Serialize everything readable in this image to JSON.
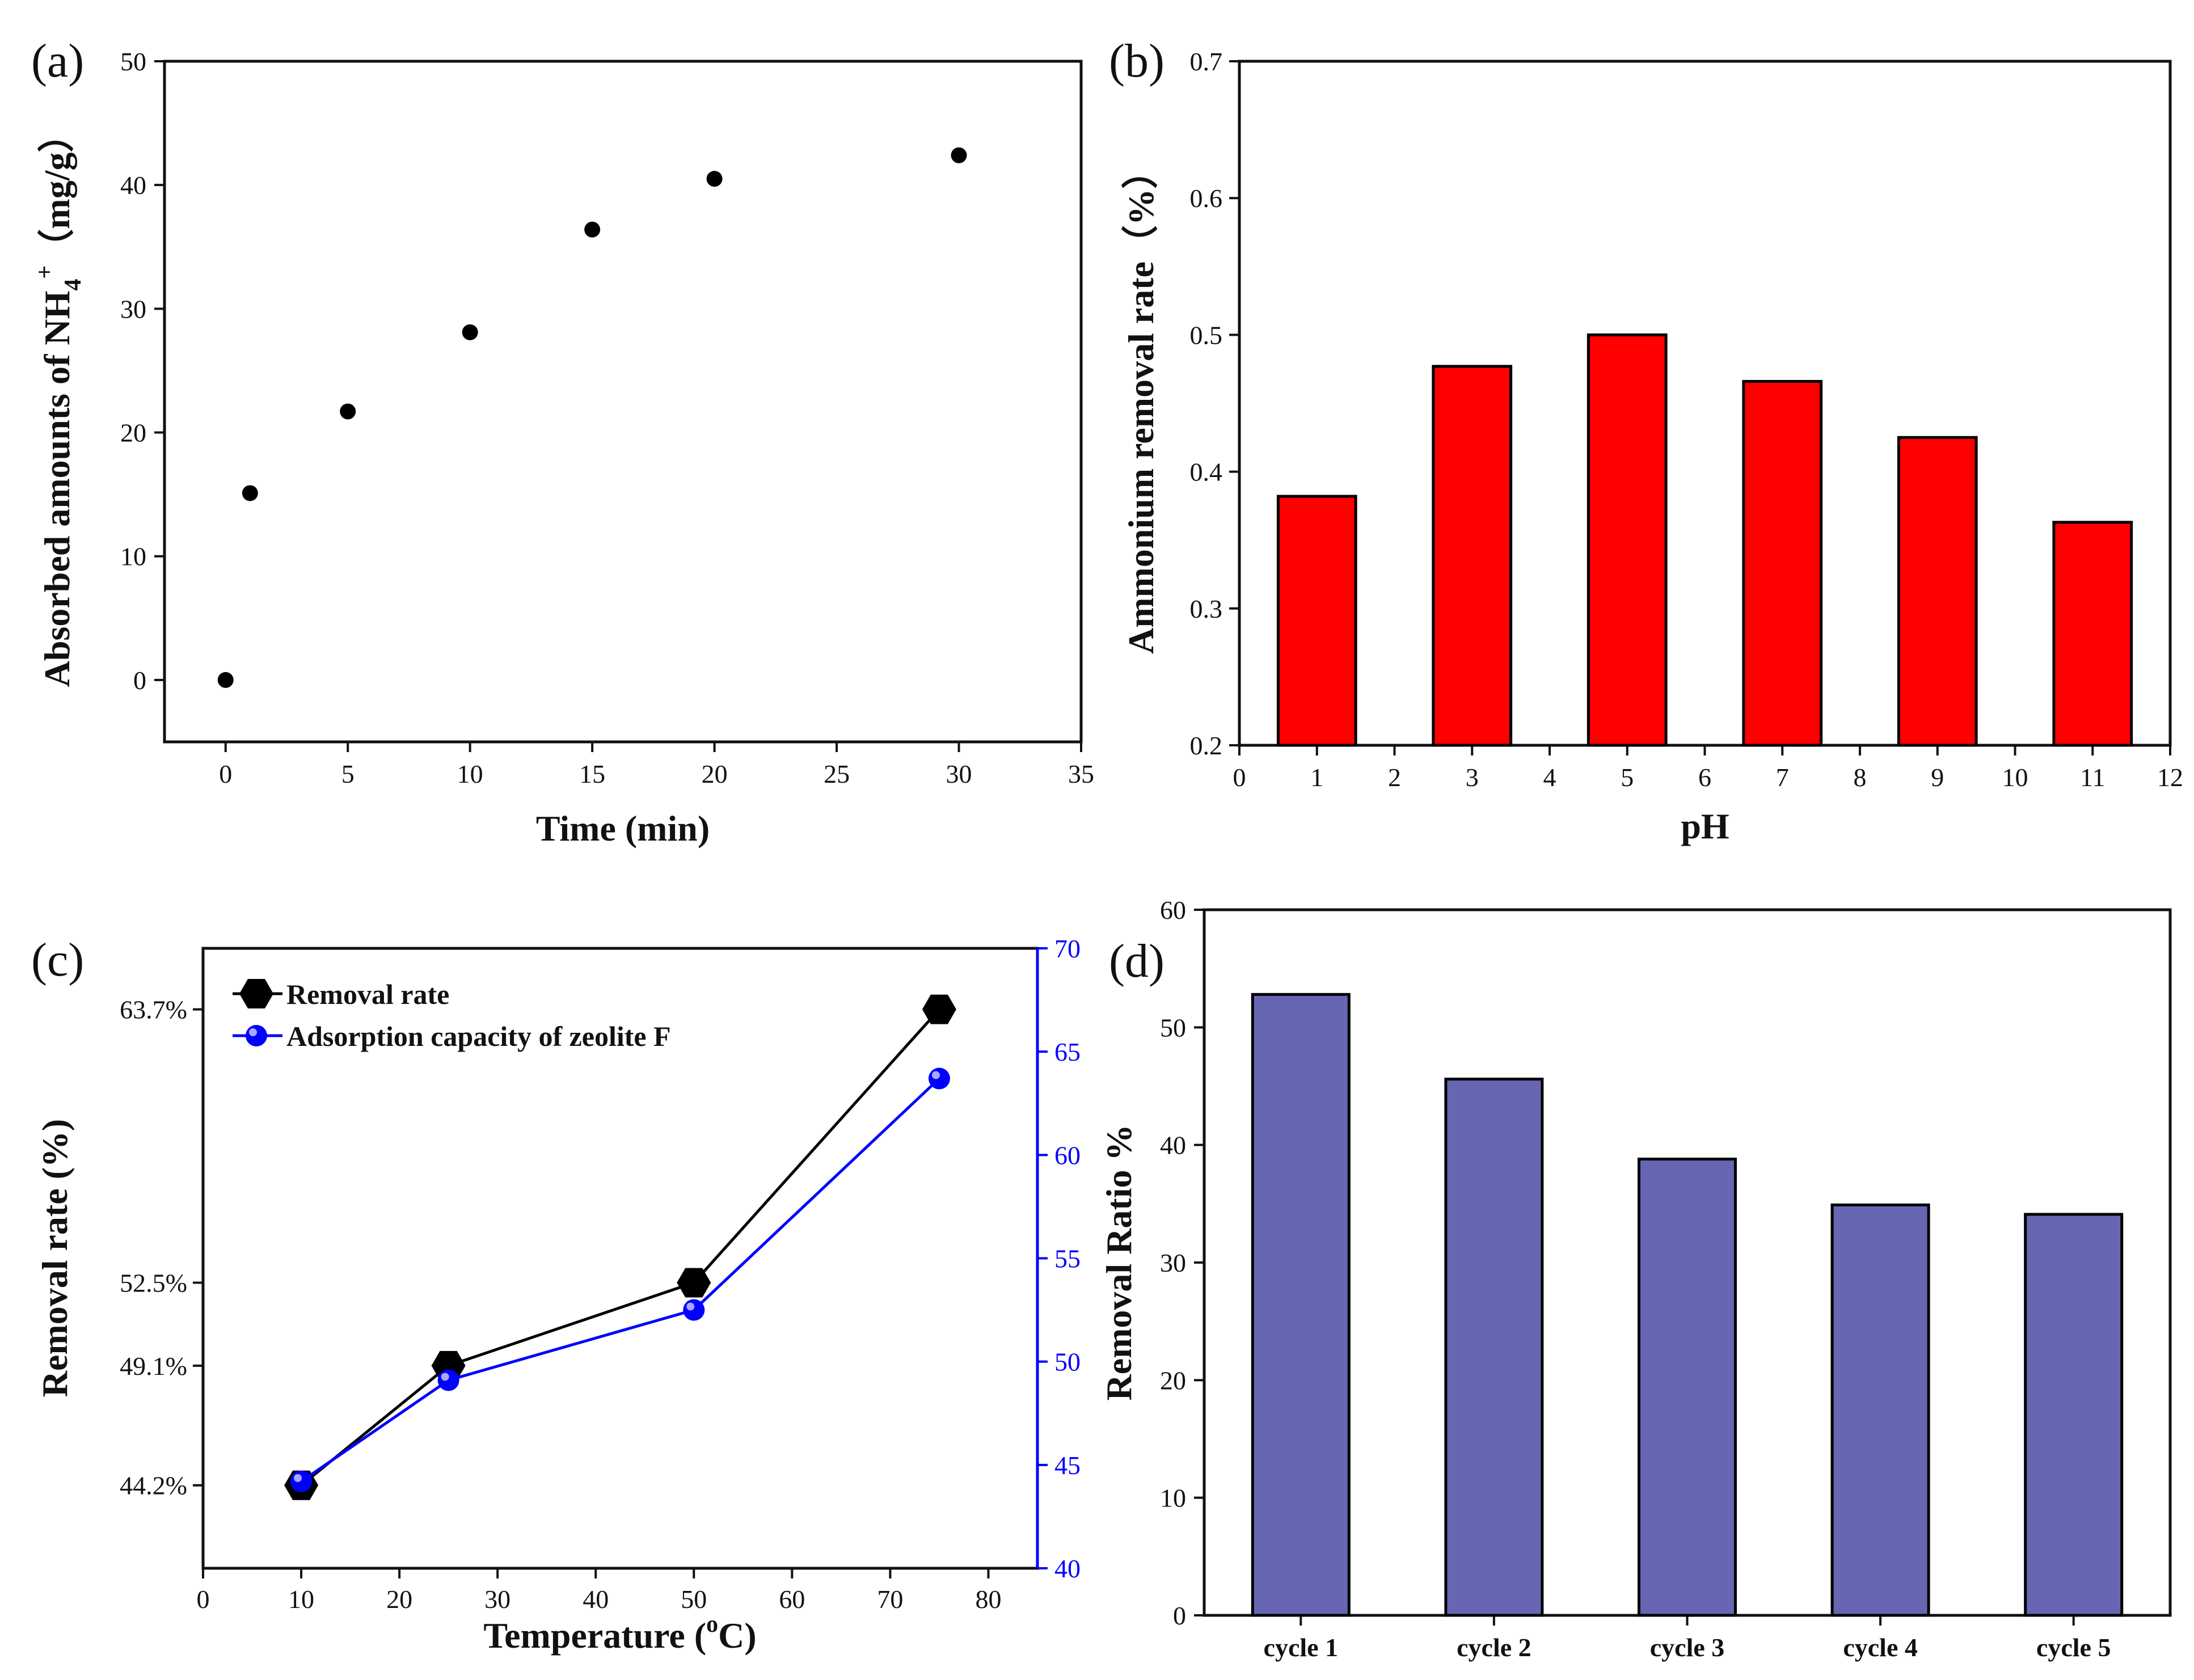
{
  "figure": {
    "background": "#ffffff"
  },
  "chart_data": [
    {
      "panel_label": "(a)",
      "type": "scatter",
      "title": "",
      "xlabel": "Time (min)",
      "ylabel": "Absorbed amounts of NH",
      "ylabel_sub": "4",
      "ylabel_sup": "+",
      "ylabel_unit": "（mg/g）",
      "xlim": [
        -2.5,
        35
      ],
      "ylim": [
        -5,
        50
      ],
      "xticks": [
        0,
        5,
        10,
        15,
        20,
        25,
        30,
        35
      ],
      "yticks": [
        0,
        10,
        20,
        30,
        40,
        50
      ],
      "x": [
        0,
        1,
        5,
        10,
        15,
        20,
        30
      ],
      "y": [
        0,
        15.1,
        21.7,
        28.1,
        36.4,
        40.5,
        42.4
      ],
      "marker_color": "#000000"
    },
    {
      "panel_label": "(b)",
      "type": "bar",
      "title": "",
      "xlabel": "pH",
      "ylabel": "Ammonium removal rate（%）",
      "xlim": [
        0,
        12
      ],
      "ylim": [
        0.2,
        0.7
      ],
      "xticks": [
        0,
        1,
        2,
        3,
        4,
        5,
        6,
        7,
        8,
        9,
        10,
        11,
        12
      ],
      "yticks": [
        0.2,
        0.3,
        0.4,
        0.5,
        0.6,
        0.7
      ],
      "categories": [
        1,
        3,
        5,
        7,
        9,
        11
      ],
      "values": [
        0.382,
        0.477,
        0.5,
        0.466,
        0.425,
        0.363
      ],
      "bar_color": "#ff0000"
    },
    {
      "panel_label": "(c)",
      "type": "line",
      "title": "",
      "xlabel": "Temperature (",
      "xlabel_sup": "o",
      "xlabel_end": "C)",
      "ylabel": "Removal rate (%)",
      "xlim": [
        0,
        85
      ],
      "xticks": [
        0,
        10,
        20,
        30,
        40,
        50,
        60,
        70,
        80
      ],
      "ylim_right": [
        40,
        70
      ],
      "yticks_right": [
        40,
        45,
        50,
        55,
        60,
        65,
        70
      ],
      "left_tick_labels": [
        "44.2%",
        "49.1%",
        "52.5%",
        "63.7%"
      ],
      "x": [
        10,
        25,
        50,
        75
      ],
      "series": [
        {
          "name": "Removal rate",
          "axis": "left",
          "values": [
            44.2,
            49.1,
            52.5,
            63.7
          ],
          "color": "#000000",
          "marker": "hexagon"
        },
        {
          "name": "Adsorption capacity of zeolite F",
          "axis": "right",
          "values": [
            44.2,
            49.1,
            52.5,
            63.7
          ],
          "color": "#0000ff",
          "marker": "sphere"
        }
      ],
      "legend_position": "top-left",
      "right_axis_color": "#0000ff"
    },
    {
      "panel_label": "(d)",
      "type": "bar",
      "title": "",
      "xlabel": "",
      "ylabel": "Removal Ratio %",
      "ylim": [
        0,
        60
      ],
      "yticks": [
        0,
        10,
        20,
        30,
        40,
        50,
        60
      ],
      "categories": [
        "cycle 1",
        "cycle 2",
        "cycle 3",
        "cycle 4",
        "cycle 5"
      ],
      "values": [
        52.8,
        45.6,
        38.8,
        34.9,
        34.1
      ],
      "bar_color": "#6666b3"
    }
  ]
}
